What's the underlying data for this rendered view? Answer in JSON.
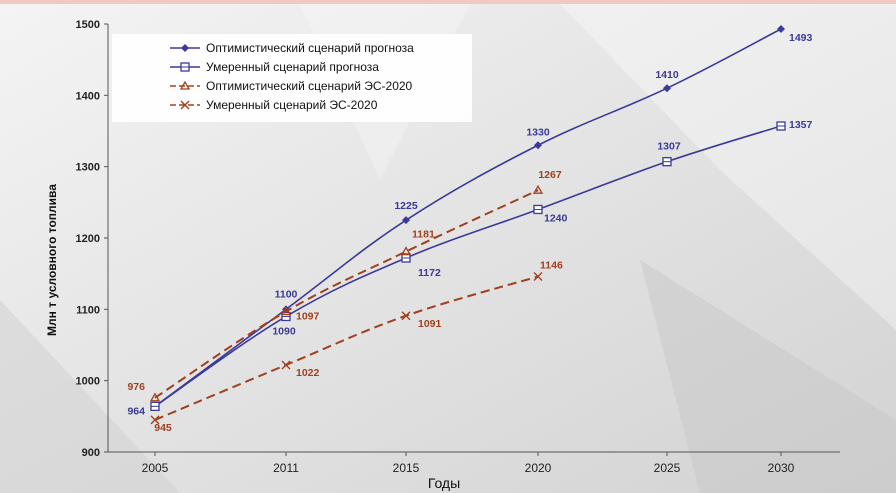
{
  "chart_data": {
    "type": "line",
    "title": "",
    "xlabel": "Годы",
    "ylabel": "Млн т условного топлива",
    "categories": [
      "2005",
      "2011",
      "2015",
      "2020",
      "2025",
      "2030"
    ],
    "ylim": [
      900,
      1500
    ],
    "yticks": [
      "900",
      "1000",
      "1100",
      "1200",
      "1300",
      "1400",
      "1500"
    ],
    "grid": false,
    "legend_position": "top-left",
    "series": [
      {
        "name": "Оптимистический сценарий прогноза",
        "color": "#3a3a9a",
        "dash": "solid",
        "marker": "diamond",
        "values": [
          964,
          1100,
          1225,
          1330,
          1410,
          1493
        ],
        "labels": [
          "964",
          "1100",
          "1225",
          "1330",
          "1410",
          "1493"
        ]
      },
      {
        "name": "Умеренный сценарий прогноза",
        "color": "#3a3a9a",
        "dash": "solid",
        "marker": "square",
        "values": [
          964,
          1090,
          1172,
          1240,
          1307,
          1357
        ],
        "labels": [
          "",
          "1090",
          "1172",
          "1240",
          "1307",
          "1357"
        ]
      },
      {
        "name": "Оптимистический сценарий ЭС-2020",
        "color": "#a0401f",
        "dash": "dashed",
        "marker": "triangle",
        "values": [
          976,
          1097,
          1181,
          1267,
          null,
          null
        ],
        "labels": [
          "976",
          "1097",
          "1181",
          "1267",
          "",
          ""
        ]
      },
      {
        "name": "Умеренный сценарий ЭС-2020",
        "color": "#a0401f",
        "dash": "dashed",
        "marker": "cross",
        "values": [
          945,
          1022,
          1091,
          1146,
          null,
          null
        ],
        "labels": [
          "945",
          "1022",
          "1091",
          "1146",
          "",
          ""
        ]
      }
    ]
  }
}
